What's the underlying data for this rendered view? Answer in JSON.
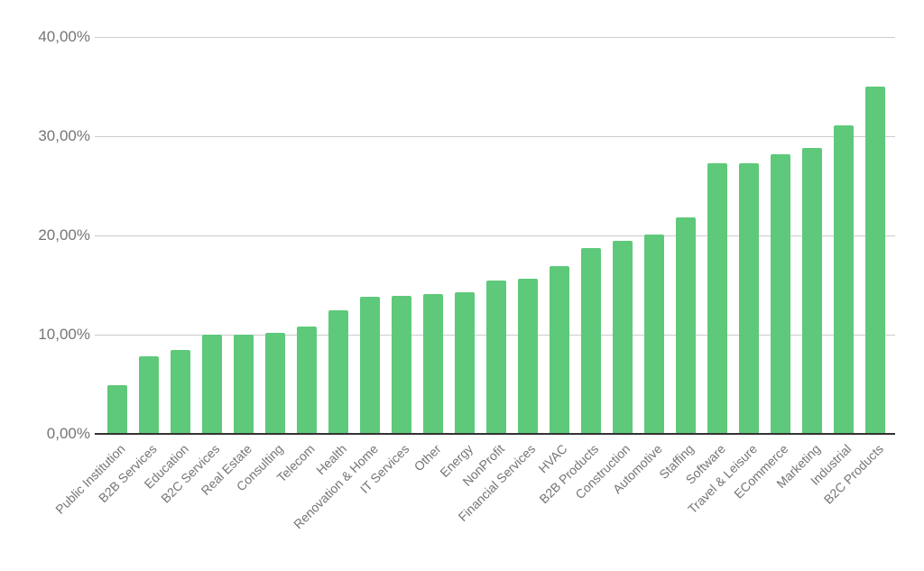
{
  "chart_data": {
    "type": "bar",
    "title": "",
    "xlabel": "",
    "ylabel": "",
    "ylim": [
      0,
      40
    ],
    "grid": true,
    "legend": null,
    "bar_color": "#5ec97a",
    "yticks": [
      "0,00%",
      "10,00%",
      "20,00%",
      "30,00%",
      "40,00%"
    ],
    "categories": [
      "Public Institution",
      "B2B Services",
      "Education",
      "B2C Services",
      "Real Estate",
      "Consulting",
      "Telecom",
      "Health",
      "Renovation & Home",
      "IT Services",
      "Other",
      "Energy",
      "NonProfit",
      "Financial Services",
      "HVAC",
      "B2B Products",
      "Construction",
      "Automotive",
      "Staffing",
      "Software",
      "Travel & Leisure",
      "ECommerce",
      "Marketing",
      "Industrial",
      "B2C Products"
    ],
    "values": [
      4.9,
      7.8,
      8.5,
      10.0,
      10.0,
      10.2,
      10.8,
      12.5,
      13.8,
      13.9,
      14.1,
      14.3,
      15.5,
      15.6,
      16.9,
      18.7,
      19.5,
      20.1,
      21.8,
      27.3,
      27.3,
      28.2,
      28.8,
      31.1,
      35.0
    ]
  }
}
